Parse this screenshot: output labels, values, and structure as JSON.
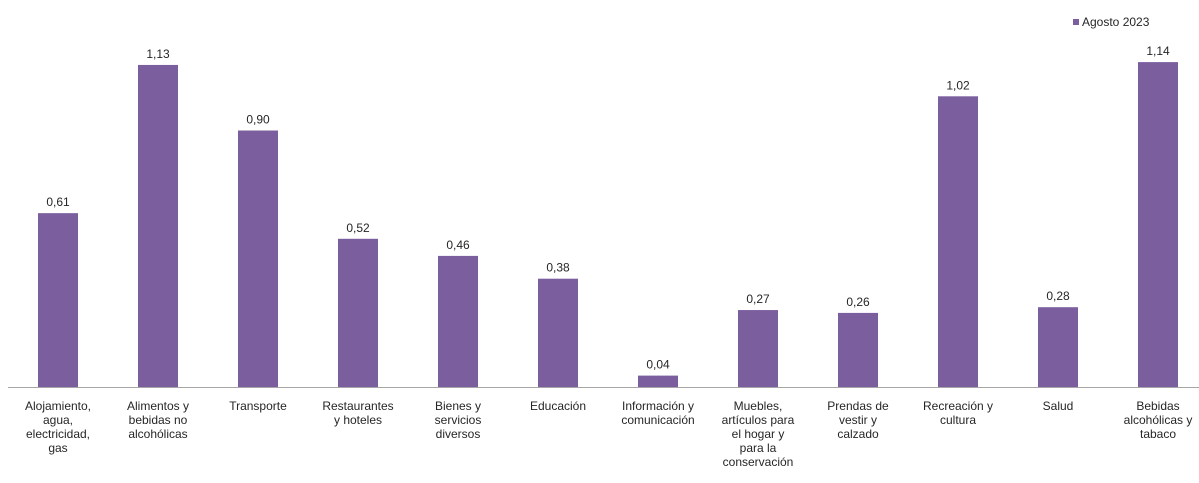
{
  "chart_data": {
    "type": "bar",
    "categories": [
      "Alojamiento, agua, electricidad, gas",
      "Alimentos y bebidas no alcohólicas",
      "Transporte",
      "Restaurantes y hoteles",
      "Bienes y servicios diversos",
      "Educación",
      "Información y comunicación",
      "Muebles, artículos para el hogar y para la conservación",
      "Prendas de vestir y calzado",
      "Recreación y cultura",
      "Salud",
      "Bebidas alcohólicas y tabaco"
    ],
    "category_lines": [
      [
        "Alojamiento,",
        "agua,",
        "electricidad,",
        "gas"
      ],
      [
        "Alimentos y",
        "bebidas no",
        "alcohólicas"
      ],
      [
        "Transporte"
      ],
      [
        "Restaurantes",
        "y hoteles"
      ],
      [
        "Bienes y",
        "servicios",
        "diversos"
      ],
      [
        "Educación"
      ],
      [
        "Información y",
        "comunicación"
      ],
      [
        "Muebles,",
        "artículos para",
        "el hogar y",
        "para la",
        "conservación"
      ],
      [
        "Prendas de",
        "vestir y",
        "calzado"
      ],
      [
        "Recreación y",
        "cultura"
      ],
      [
        "Salud"
      ],
      [
        "Bebidas",
        "alcohólicas y",
        "tabaco"
      ]
    ],
    "series": [
      {
        "name": "Agosto 2023",
        "values": [
          0.61,
          1.13,
          0.9,
          0.52,
          0.46,
          0.38,
          0.04,
          0.27,
          0.26,
          1.02,
          0.28,
          1.14
        ],
        "labels": [
          "0,61",
          "1,13",
          "0,90",
          "0,52",
          "0,46",
          "0,38",
          "0,04",
          "0,27",
          "0,26",
          "1,02",
          "0,28",
          "1,14"
        ]
      }
    ],
    "ylim": [
      0,
      1.2
    ],
    "grid": false,
    "legend_position": "top-right",
    "colors": {
      "bar": "#7B5E9E",
      "axis": "#A6A6A6",
      "text": "#262626"
    }
  }
}
